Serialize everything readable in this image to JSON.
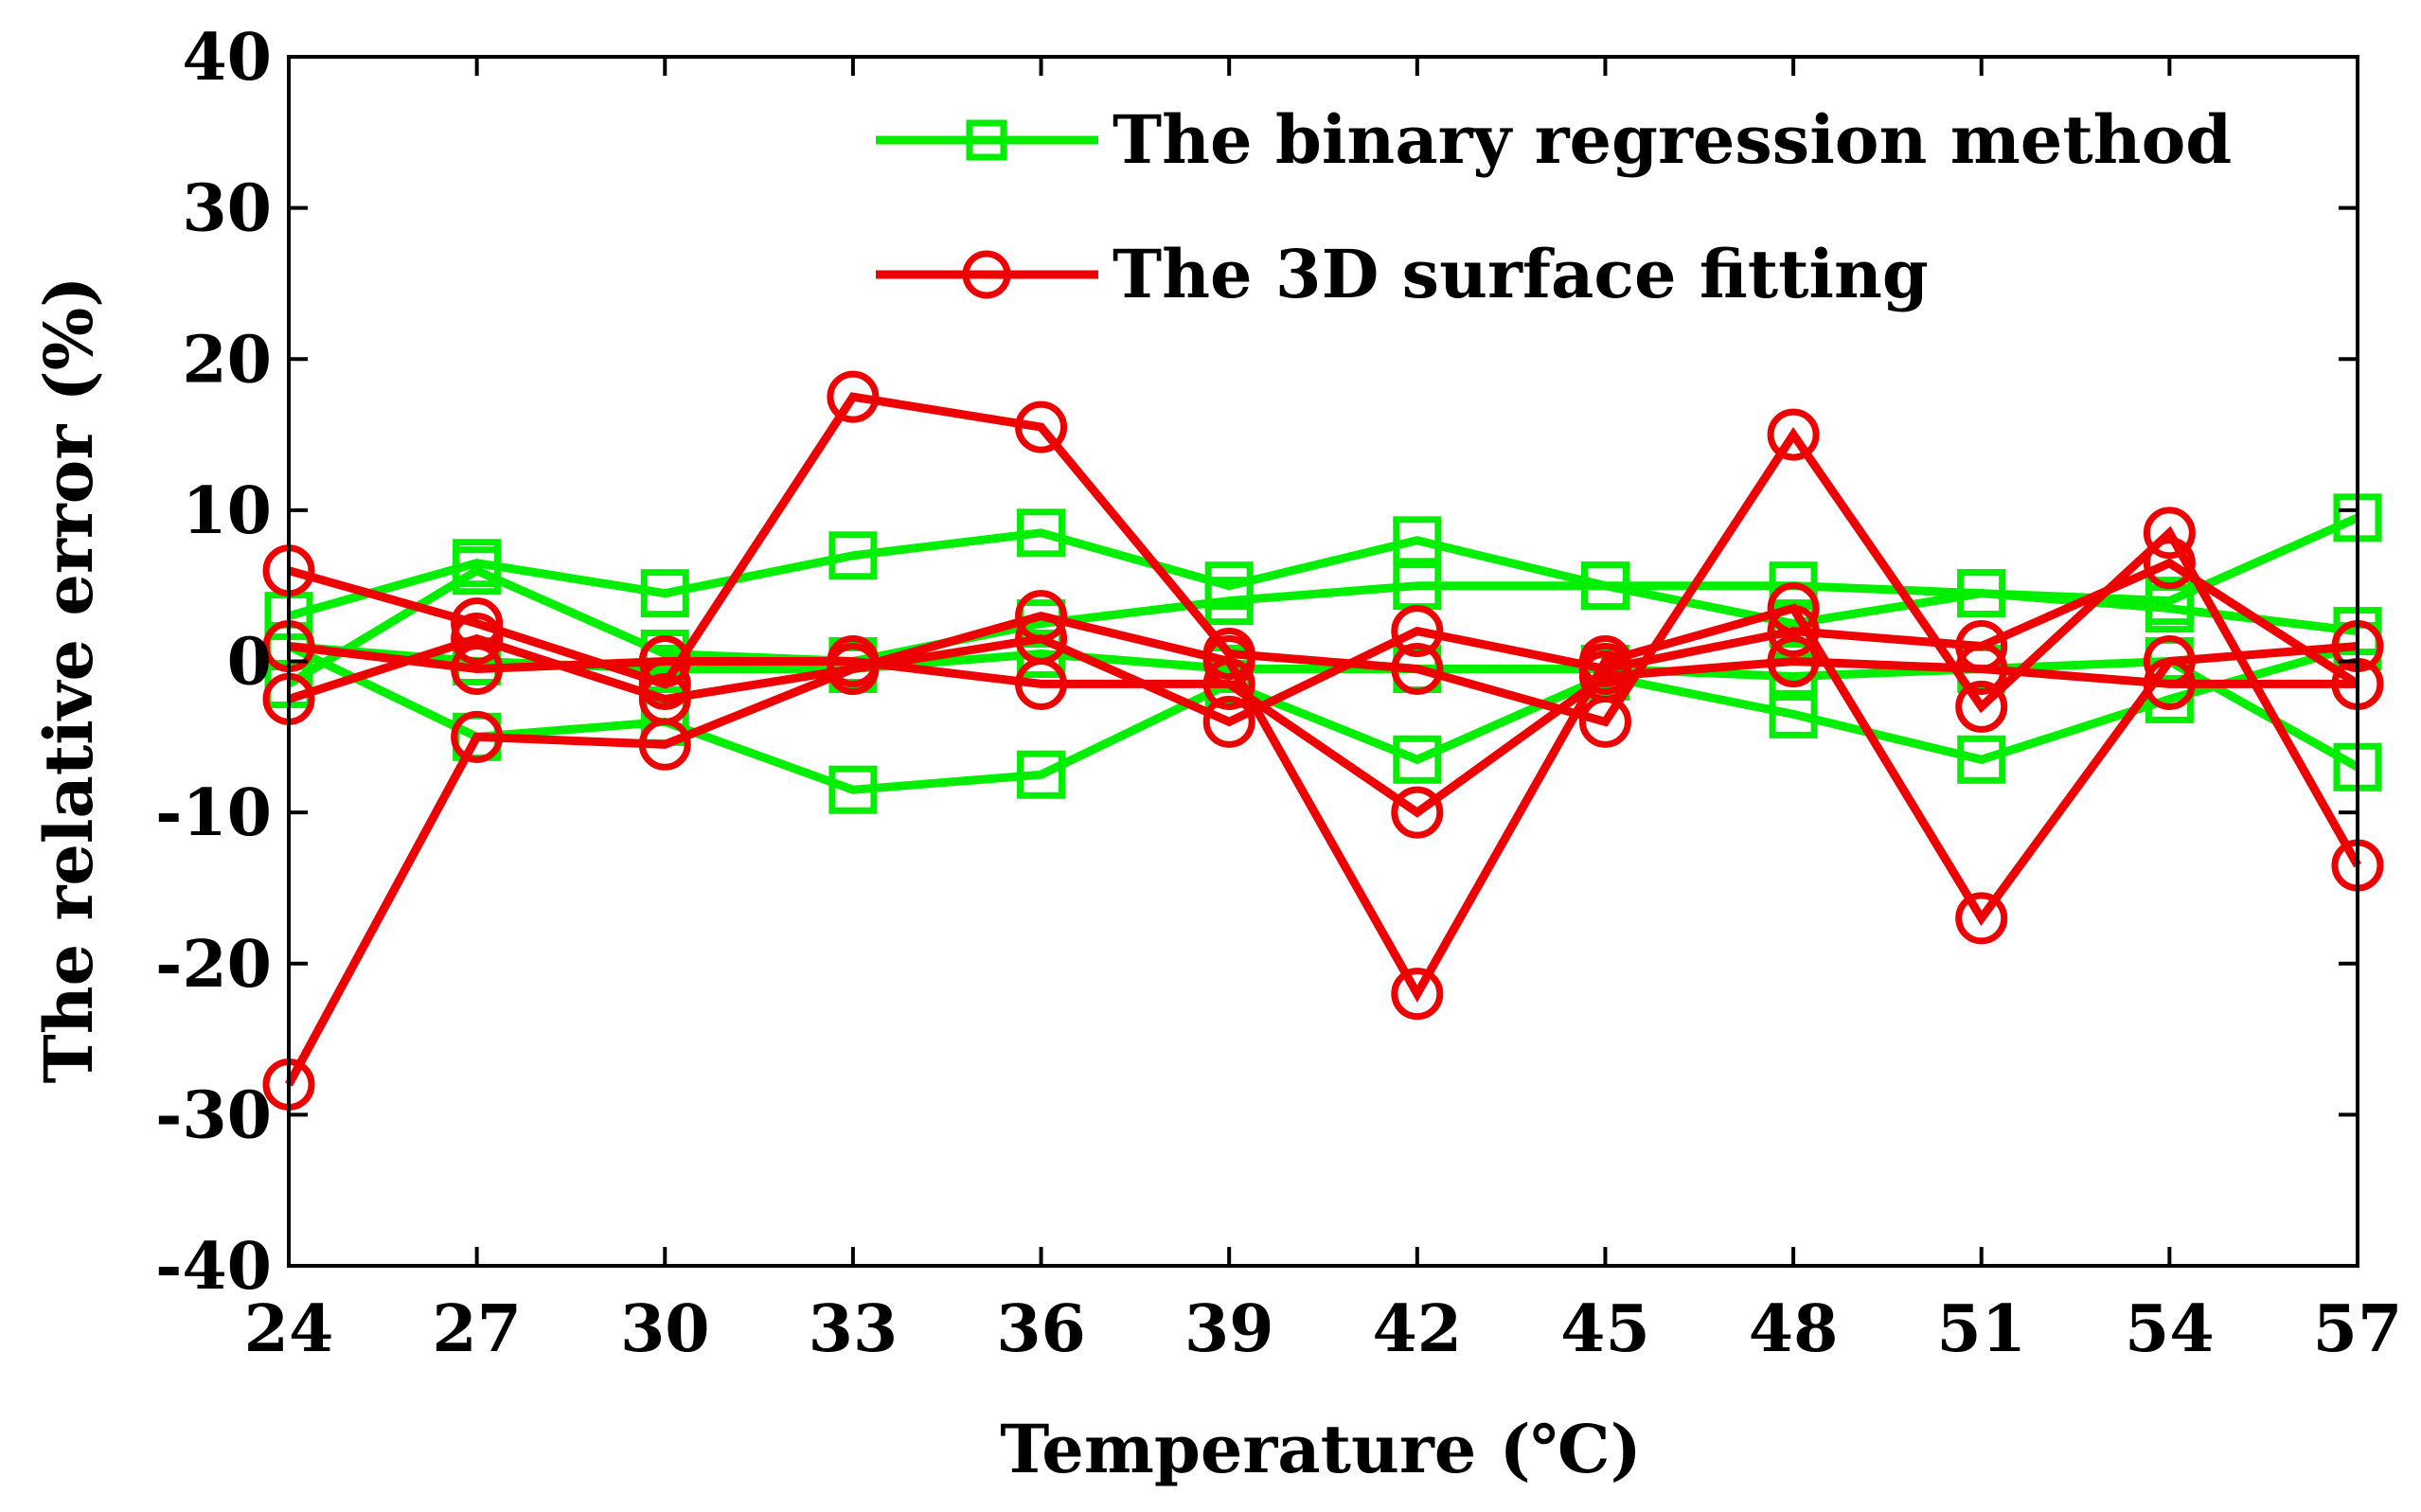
{
  "chart_data": {
    "type": "line",
    "xlabel": "Temperature (℃)",
    "ylabel": "The relative error (%)",
    "xlim": [
      24,
      57
    ],
    "ylim": [
      -40,
      40
    ],
    "x": [
      24,
      27,
      30,
      33,
      36,
      39,
      42,
      45,
      48,
      51,
      54,
      57
    ],
    "xticks": [
      "24",
      "27",
      "30",
      "33",
      "36",
      "39",
      "42",
      "45",
      "48",
      "51",
      "54",
      "57"
    ],
    "yticks": [
      "-40",
      "-30",
      "-20",
      "-10",
      "0",
      "10",
      "20",
      "30",
      "40"
    ],
    "ytick_values": [
      -40,
      -30,
      -20,
      -10,
      0,
      10,
      20,
      30,
      40
    ],
    "legend": [
      {
        "label": "The binary regression method",
        "marker": "square",
        "color": "#00ee00"
      },
      {
        "label": "The 3D surface fitting",
        "marker": "circle",
        "color": "#ee0000"
      }
    ],
    "series": [
      {
        "name": "The binary regression method",
        "marker": "square",
        "color": "#00ee00",
        "values": [
          3,
          6.5,
          4.5,
          7,
          8.5,
          5,
          8,
          5,
          5,
          4.5,
          4,
          9.5
        ]
      },
      {
        "name": "The binary regression method",
        "marker": "square",
        "color": "#00ee00",
        "values": [
          -1.5,
          6,
          0.5,
          0,
          2.5,
          4,
          5,
          5,
          2.5,
          4.5,
          3.5,
          2
        ]
      },
      {
        "name": "The binary regression method",
        "marker": "square",
        "color": "#00ee00",
        "values": [
          1,
          -5,
          -4,
          -8.5,
          -7.5,
          -1.5,
          -6.5,
          -1,
          -3.5,
          -6.5,
          -2.5,
          1
        ]
      },
      {
        "name": "The binary regression method",
        "marker": "square",
        "color": "#00ee00",
        "values": [
          1,
          0,
          -0.5,
          -0.5,
          0.5,
          -0.5,
          -0.5,
          -0.5,
          -1,
          -0.5,
          0,
          -7
        ]
      },
      {
        "name": "The 3D surface fitting",
        "marker": "circle",
        "color": "#ee0000",
        "values": [
          6,
          2.5,
          -1.5,
          17.5,
          15.5,
          0.5,
          -0.5,
          -4,
          15,
          -3,
          8.5,
          -13.5
        ]
      },
      {
        "name": "The 3D surface fitting",
        "marker": "circle",
        "color": "#ee0000",
        "values": [
          -28,
          -5,
          -5.5,
          -0.5,
          3,
          0,
          -22,
          0,
          3.5,
          -17,
          0,
          1
        ]
      },
      {
        "name": "The 3D surface fitting",
        "marker": "circle",
        "color": "#ee0000",
        "values": [
          -2.5,
          1.5,
          -2.5,
          -0.5,
          1.5,
          -4,
          2,
          -0.5,
          2,
          1,
          6.5,
          -1.5
        ]
      },
      {
        "name": "The 3D surface fitting",
        "marker": "circle",
        "color": "#ee0000",
        "values": [
          1,
          -0.5,
          0,
          0,
          -1.5,
          -1.5,
          -10,
          -1,
          0,
          -0.5,
          -1.5,
          -1.5
        ]
      }
    ]
  }
}
